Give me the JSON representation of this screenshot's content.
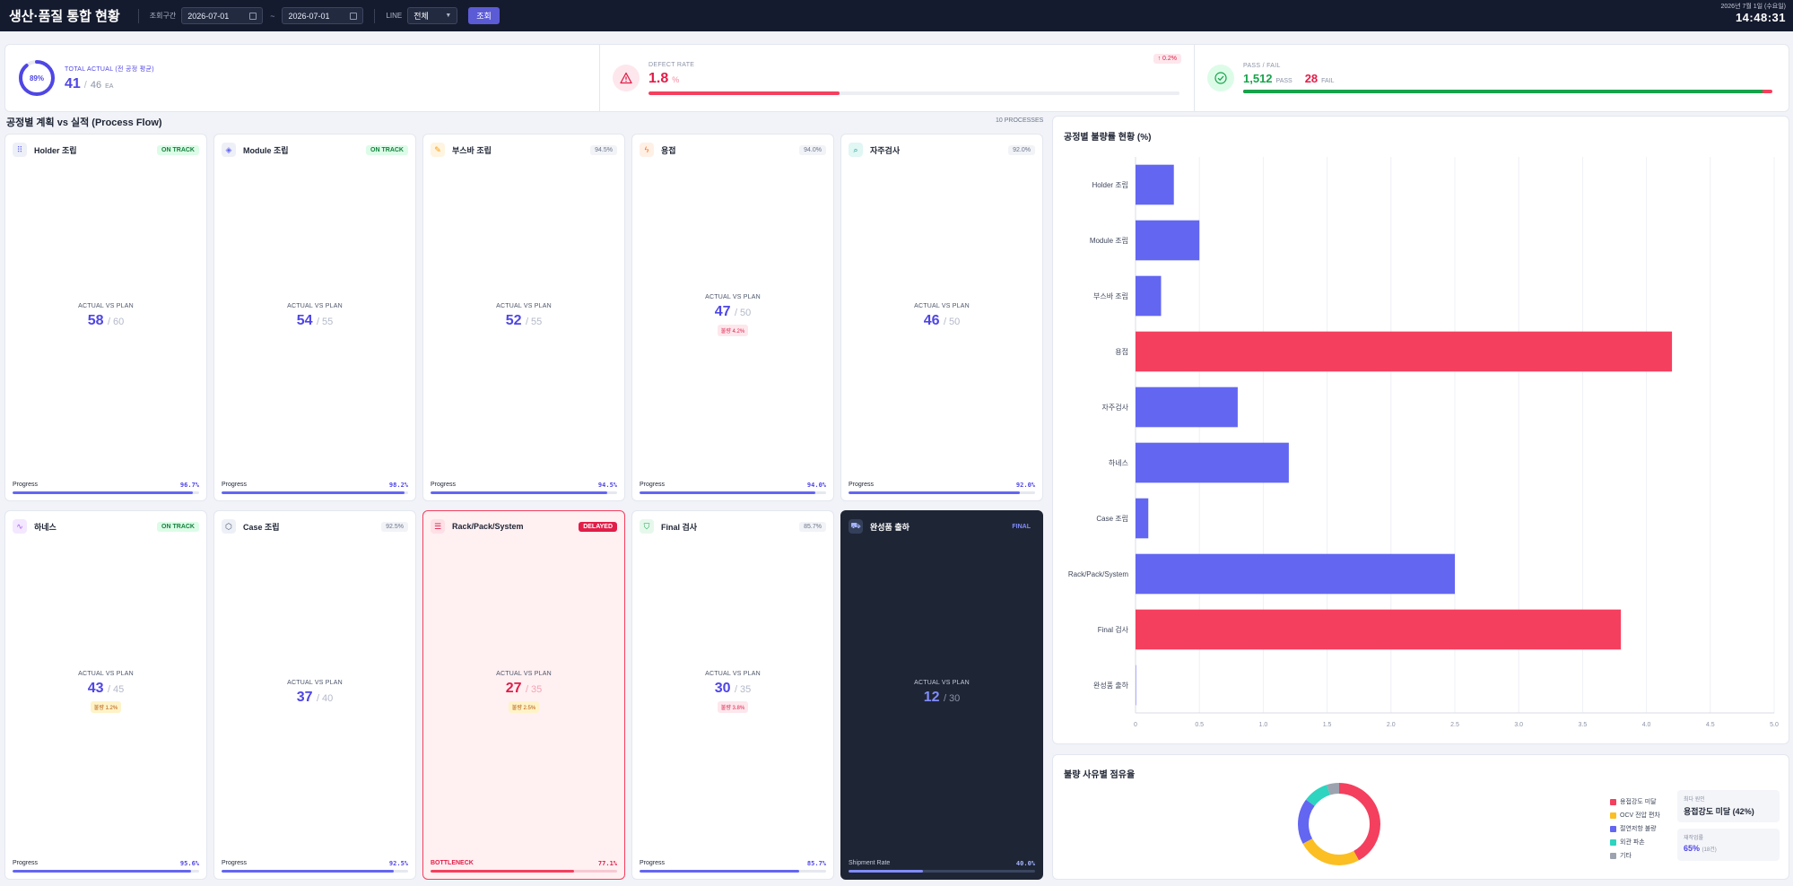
{
  "header": {
    "title": "생산·품질 통합 현황",
    "period_label": "조회구간",
    "date_from": "2026-07-01",
    "date_to": "2026-07-01",
    "tilde": "~",
    "line_label": "LINE",
    "line_value": "전체",
    "query_button": "조회",
    "date_text": "2026년 7월 1일 (수요일)",
    "time_text": "14:48:31"
  },
  "kpi": {
    "total": {
      "label": "TOTAL ACTUAL (전 공정 평균)",
      "ring_text": "89%",
      "ring_value": 0.89,
      "actual": "41",
      "slash": "/",
      "plan": "46",
      "unit": "EA"
    },
    "defect": {
      "label": "DEFECT RATE",
      "value": "1.8",
      "unit": "%",
      "delta": "↑ 0.2%",
      "bar_fraction": 0.36
    },
    "passfail": {
      "label": "PASS / FAIL",
      "pass": "1,512",
      "pass_label": "PASS",
      "fail": "28",
      "fail_label": "FAIL",
      "pass_fraction": 0.982
    }
  },
  "flow": {
    "title": "공정별 계획 vs 실적 (Process Flow)",
    "count": "10 PROCESSES",
    "avp_label": "ACTUAL VS PLAN",
    "processes": [
      {
        "name": "Holder 조립",
        "badge": "ON TRACK",
        "actual": "58",
        "plan": "/ 60",
        "progress_label": "Progress",
        "progress": "96.7%",
        "pct": 0.967
      },
      {
        "name": "Module 조립",
        "badge": "ON TRACK",
        "actual": "54",
        "plan": "/ 55",
        "progress_label": "Progress",
        "progress": "98.2%",
        "pct": 0.982
      },
      {
        "name": "부스바 조립",
        "badge": "94.5%",
        "actual": "52",
        "plan": "/ 55",
        "progress_label": "Progress",
        "progress": "94.5%",
        "pct": 0.945
      },
      {
        "name": "용접",
        "badge": "94.0%",
        "actual": "47",
        "plan": "/ 50",
        "chip": "불량 4.2%",
        "progress_label": "Progress",
        "progress": "94.0%",
        "pct": 0.94
      },
      {
        "name": "자주검사",
        "badge": "92.0%",
        "actual": "46",
        "plan": "/ 50",
        "progress_label": "Progress",
        "progress": "92.0%",
        "pct": 0.92
      },
      {
        "name": "하네스",
        "badge": "ON TRACK",
        "actual": "43",
        "plan": "/ 45",
        "chip": "불량 1.2%",
        "progress_label": "Progress",
        "progress": "95.6%",
        "pct": 0.956
      },
      {
        "name": "Case 조립",
        "badge": "92.5%",
        "actual": "37",
        "plan": "/ 40",
        "progress_label": "Progress",
        "progress": "92.5%",
        "pct": 0.925
      },
      {
        "name": "Rack/Pack/System",
        "badge": "DELAYED",
        "actual": "27",
        "plan": "/ 35",
        "chip": "불량 2.5%",
        "progress_label": "BOTTLENECK",
        "progress": "77.1%",
        "pct": 0.771
      },
      {
        "name": "Final 검사",
        "badge": "85.7%",
        "actual": "30",
        "plan": "/ 35",
        "chip": "불량 3.8%",
        "progress_label": "Progress",
        "progress": "85.7%",
        "pct": 0.857
      },
      {
        "name": "완성품 출하",
        "badge": "FINAL",
        "actual": "12",
        "plan": "/ 30",
        "progress_label": "Shipment Rate",
        "progress": "40.0%",
        "pct": 0.4
      }
    ]
  },
  "chart_data": [
    {
      "type": "bar",
      "orientation": "horizontal",
      "title": "공정별 불량률 현황 (%)",
      "categories": [
        "Holder 조립",
        "Module 조립",
        "부스바 조립",
        "용접",
        "자주검사",
        "하네스",
        "Case 조립",
        "Rack/Pack/System",
        "Final 검사",
        "완성품 출하"
      ],
      "values": [
        0.3,
        0.5,
        0.2,
        4.2,
        0.8,
        1.2,
        0.1,
        2.5,
        3.8,
        0
      ],
      "highlight": [
        false,
        false,
        false,
        true,
        false,
        false,
        false,
        false,
        true,
        false
      ],
      "xlim": [
        0,
        5
      ],
      "ticks": [
        "0",
        "0.5",
        "1.0",
        "1.5",
        "2.0",
        "2.5",
        "3.0",
        "3.5",
        "4.0",
        "4.5",
        "5.0"
      ],
      "colors": {
        "normal": "#6366f1",
        "high": "#f43f5e"
      },
      "grid": true
    },
    {
      "type": "pie",
      "variant": "donut",
      "title": "불량 사유별 점유율",
      "labels": [
        "용접강도 미달",
        "OCV 전압 편차",
        "절연저항 불량",
        "외관 파손",
        "기타"
      ],
      "values": [
        42,
        25,
        18,
        10,
        5
      ],
      "colors": [
        "#f43f5e",
        "#fbbf24",
        "#6366f1",
        "#2dd4bf",
        "#9ca3af"
      ],
      "legend": "right"
    }
  ],
  "reasons_info": {
    "top_label": "최다 원인",
    "top_value": "용접강도 미달 (42%)",
    "rework_label": "재작업률",
    "rework_value": "65%",
    "rework_sub": "(18건)"
  }
}
